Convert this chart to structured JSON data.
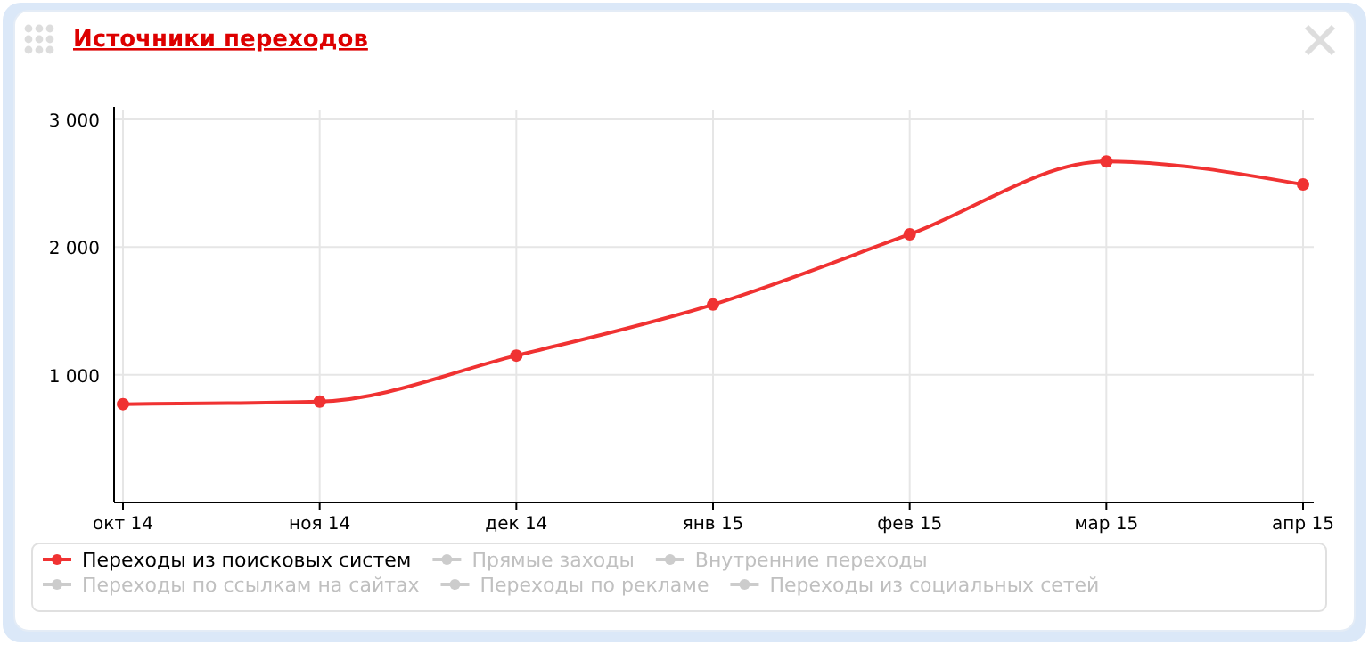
{
  "chart_data": {
    "type": "line",
    "title": "Источники переходов",
    "categories": [
      "окт 14",
      "ноя 14",
      "дек 14",
      "янв 15",
      "фев 15",
      "мар 15",
      "апр 15"
    ],
    "series": [
      {
        "name": "Переходы из поисковых систем",
        "color": "#f03232",
        "values": [
          770,
          790,
          1150,
          1550,
          2100,
          2670,
          2490
        ]
      },
      {
        "name": "Прямые заходы",
        "color": "#cccccc",
        "values": [
          null,
          null,
          null,
          null,
          null,
          null,
          null
        ]
      },
      {
        "name": "Внутренние переходы",
        "color": "#cccccc",
        "values": [
          null,
          null,
          null,
          null,
          null,
          null,
          null
        ]
      },
      {
        "name": "Переходы по ссылкам на сайтах",
        "color": "#cccccc",
        "values": [
          null,
          null,
          null,
          null,
          null,
          null,
          null
        ]
      },
      {
        "name": "Переходы по рекламе",
        "color": "#cccccc",
        "values": [
          null,
          null,
          null,
          null,
          null,
          null,
          null
        ]
      },
      {
        "name": "Переходы из социальных сетей",
        "color": "#cccccc",
        "values": [
          null,
          null,
          null,
          null,
          null,
          null,
          null
        ]
      }
    ],
    "ylim": [
      0,
      3000
    ],
    "yticks": [
      {
        "value": 1000,
        "label": "1 000"
      },
      {
        "value": 2000,
        "label": "2 000"
      },
      {
        "value": 3000,
        "label": "3 000"
      }
    ],
    "grid": true,
    "legend": "bottom",
    "marker": "circle",
    "line_style": "solid"
  }
}
